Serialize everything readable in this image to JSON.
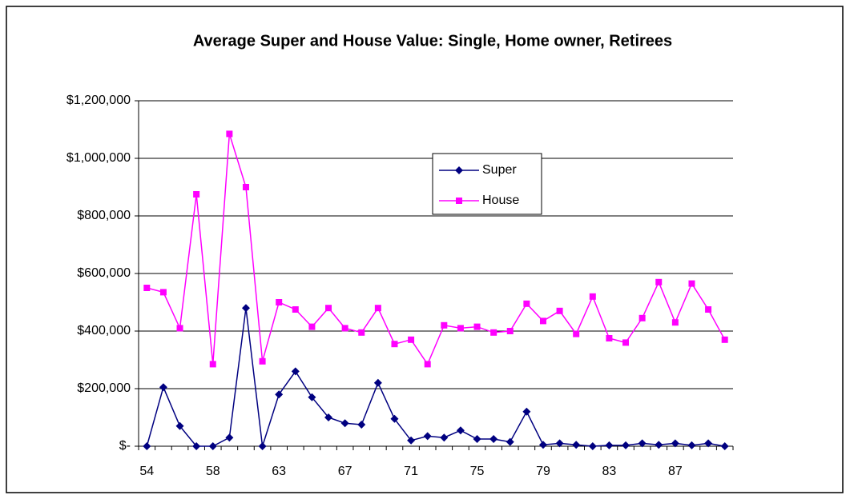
{
  "chart_data": {
    "type": "line",
    "title": "Average Super and House Value: Single, Home owner, Retirees",
    "categories": [
      "54",
      null,
      null,
      null,
      "58",
      null,
      null,
      null,
      "63",
      null,
      null,
      null,
      "67",
      null,
      null,
      null,
      "71",
      null,
      null,
      null,
      "75",
      null,
      null,
      null,
      "79",
      null,
      null,
      null,
      "83",
      null,
      null,
      null,
      "87",
      null,
      null,
      null
    ],
    "series": [
      {
        "name": "Super",
        "color": "#000080",
        "marker": "diamond",
        "values": [
          0,
          205000,
          70000,
          0,
          0,
          30000,
          480000,
          0,
          180000,
          260000,
          170000,
          100000,
          80000,
          75000,
          220000,
          95000,
          20000,
          35000,
          30000,
          55000,
          25000,
          25000,
          15000,
          120000,
          5000,
          10000,
          5000,
          0,
          3000,
          3000,
          10000,
          5000,
          10000,
          3000,
          10000,
          0
        ]
      },
      {
        "name": "House",
        "color": "#ff00ff",
        "marker": "square",
        "values": [
          550000,
          535000,
          410000,
          875000,
          285000,
          1085000,
          900000,
          295000,
          500000,
          475000,
          415000,
          480000,
          410000,
          395000,
          480000,
          355000,
          370000,
          285000,
          420000,
          410000,
          415000,
          395000,
          400000,
          495000,
          435000,
          470000,
          390000,
          520000,
          375000,
          360000,
          445000,
          570000,
          430000,
          565000,
          475000,
          370000
        ]
      }
    ],
    "ylim": [
      0,
      1200000
    ],
    "yticks": [
      {
        "value": 0,
        "label": "$-"
      },
      {
        "value": 200000,
        "label": "$200,000"
      },
      {
        "value": 400000,
        "label": "$400,000"
      },
      {
        "value": 600000,
        "label": "$600,000"
      },
      {
        "value": 800000,
        "label": "$800,000"
      },
      {
        "value": 1000000,
        "label": "$1,000,000"
      },
      {
        "value": 1200000,
        "label": "$1,200,000"
      }
    ],
    "grid": true
  }
}
